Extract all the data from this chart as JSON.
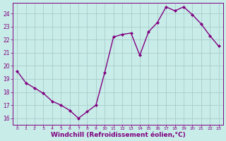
{
  "x": [
    0,
    1,
    2,
    3,
    4,
    5,
    6,
    7,
    8,
    9,
    10,
    11,
    12,
    13,
    14,
    15,
    16,
    17,
    18,
    19,
    20,
    21,
    22,
    23
  ],
  "y": [
    19.6,
    18.7,
    18.3,
    17.9,
    17.3,
    17.0,
    16.6,
    16.0,
    16.5,
    17.0,
    19.5,
    22.2,
    22.4,
    22.5,
    20.8,
    22.6,
    23.3,
    24.5,
    24.2,
    24.5,
    23.9,
    23.2,
    22.3,
    21.5
  ],
  "line_color": "#800080",
  "marker": "D",
  "marker_size": 2.0,
  "bg_color": "#c8ece8",
  "grid_color": "#aacccc",
  "xlabel": "Windchill (Refroidissement éolien,°C)",
  "xlabel_color": "#800080",
  "tick_color": "#800080",
  "spine_color": "#800080",
  "ylim": [
    15.5,
    24.8
  ],
  "yticks": [
    16,
    17,
    18,
    19,
    20,
    21,
    22,
    23,
    24
  ],
  "xticks": [
    0,
    1,
    2,
    3,
    4,
    5,
    6,
    7,
    8,
    9,
    10,
    11,
    12,
    13,
    14,
    15,
    16,
    17,
    18,
    19,
    20,
    21,
    22,
    23
  ],
  "line_width": 1.0,
  "xlabel_fontsize": 6.5,
  "xlabel_fontweight": "bold"
}
